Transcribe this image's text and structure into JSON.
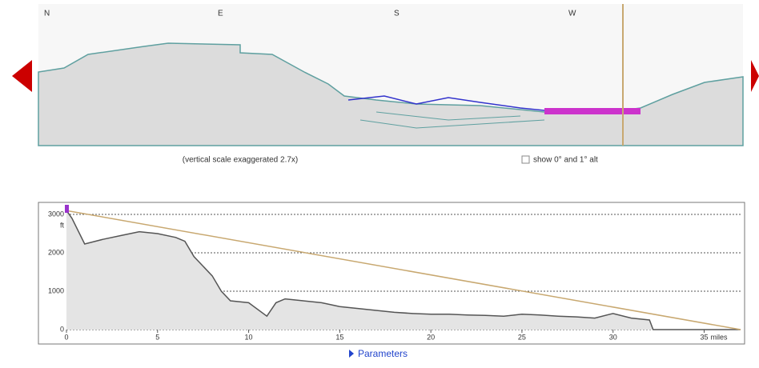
{
  "panorama": {
    "directions": [
      "N",
      "E",
      "S",
      "W"
    ],
    "caption": "(vertical scale exaggerated 2.7x)",
    "checkbox_label": "show 0° and 1° alt"
  },
  "chart_data": {
    "type": "line",
    "xlabel": "miles",
    "ylabel": "ft",
    "xlim": [
      0,
      37
    ],
    "ylim": [
      0,
      3250
    ],
    "xticks": [
      0,
      5,
      10,
      15,
      20,
      25,
      30,
      35
    ],
    "yticks": [
      0,
      1000,
      2000,
      3000
    ],
    "grid": true,
    "series": [
      {
        "color": "#555555",
        "fill": "#e4e4e4",
        "x": [
          0,
          0.3,
          1,
          2,
          3,
          4,
          5,
          6,
          6.5,
          7,
          8,
          8.5,
          9,
          10,
          11,
          11.5,
          12,
          13,
          14,
          15,
          16,
          17,
          18,
          19,
          20,
          21,
          22,
          23,
          24,
          25,
          26,
          27,
          28,
          29,
          30,
          31,
          32,
          32.2,
          33,
          35,
          37
        ],
        "values": [
          3100,
          2900,
          2230,
          2350,
          2450,
          2550,
          2500,
          2400,
          2300,
          1900,
          1400,
          1000,
          750,
          700,
          350,
          700,
          800,
          750,
          700,
          600,
          550,
          500,
          450,
          420,
          400,
          400,
          380,
          370,
          350,
          400,
          380,
          350,
          330,
          300,
          420,
          300,
          250,
          0,
          0,
          0,
          0
        ]
      },
      {
        "color": "#c8a870",
        "x": [
          0,
          37
        ],
        "values": [
          3100,
          0
        ]
      }
    ]
  },
  "footer": {
    "link": "Parameters"
  }
}
